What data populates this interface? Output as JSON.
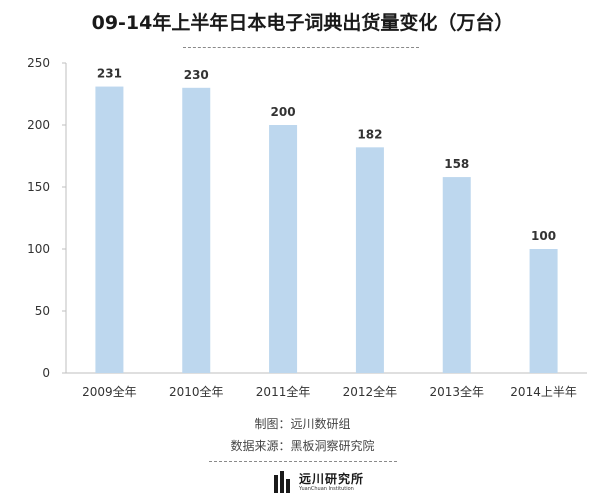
{
  "chart_data": {
    "type": "bar",
    "title": "09-14年上半年日本电子词典出货量变化（万台）",
    "categories": [
      "2009全年",
      "2010全年",
      "2011全年",
      "2012全年",
      "2013全年",
      "2014上半年"
    ],
    "values": [
      231,
      230,
      200,
      182,
      158,
      100
    ],
    "data_labels": [
      "231",
      "230",
      "200",
      "182",
      "158",
      "100"
    ],
    "ylim": [
      0,
      250
    ],
    "yticks": [
      0,
      50,
      100,
      150,
      200,
      250
    ],
    "grid": false,
    "legend": "none",
    "bar_color": "#bdd7ee",
    "axis_color": "#bfbfbf"
  },
  "footer": {
    "maker": "制图：远川数研组",
    "source": "数据来源：黑板洞察研究院"
  },
  "logo": {
    "name": "远川研究所",
    "subtitle": "YuanChuan Institution"
  }
}
